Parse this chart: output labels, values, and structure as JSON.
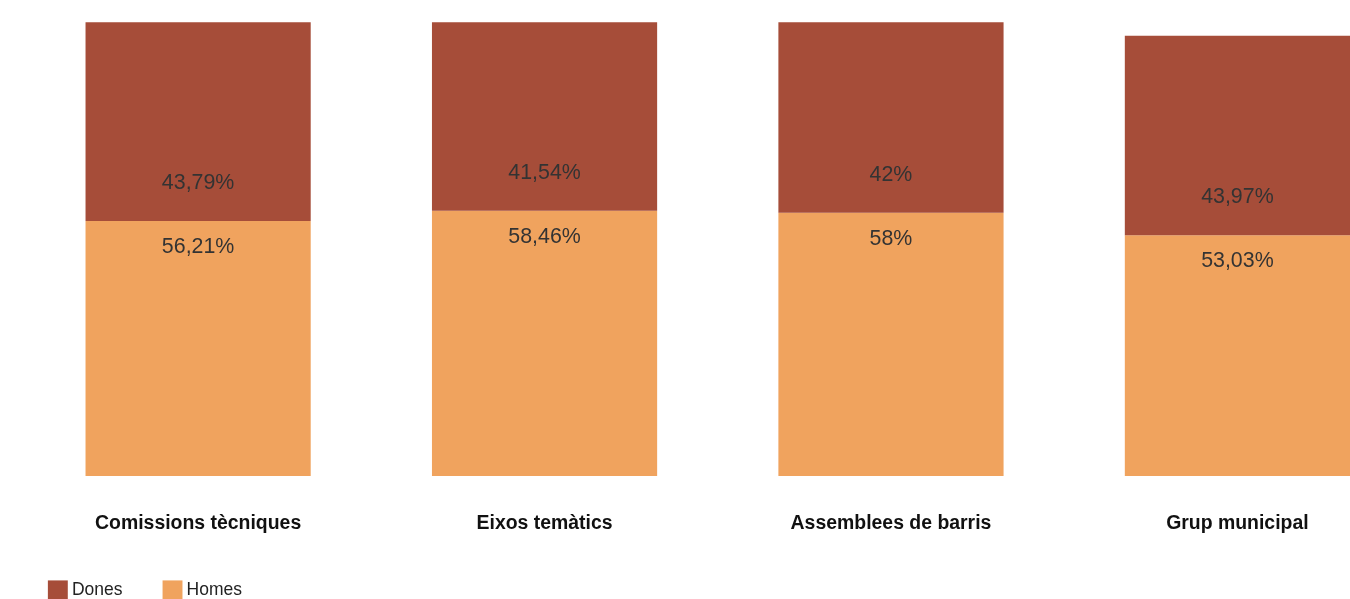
{
  "chart_data": {
    "type": "bar",
    "stacked": true,
    "legend": "bottom left",
    "categories": [
      "Comissions tècniques",
      "Eixos temàtics",
      "Assemblees de barris",
      "Grup municipal"
    ],
    "series": [
      {
        "name": "Homes",
        "color": "#f0a35e",
        "values": [
          56.21,
          58.46,
          58,
          53.03
        ],
        "value_labels": [
          "56,21%",
          "58,46%",
          "58%",
          "53,03%"
        ]
      },
      {
        "name": "Dones",
        "color": "#a64d39",
        "values": [
          43.79,
          41.54,
          42,
          43.97
        ],
        "value_labels": [
          "43,79%",
          "41,54%",
          "42%",
          "43,97%"
        ]
      }
    ]
  }
}
